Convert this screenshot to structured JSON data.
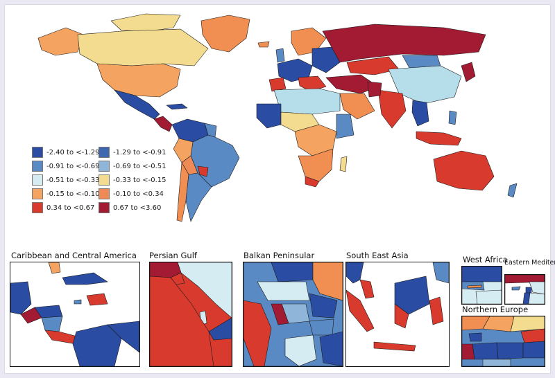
{
  "colors": {
    "c1": "#2a4da3",
    "c2": "#5a8ac4",
    "c3": "#b6ddea",
    "c4": "#f3dc8f",
    "c5": "#f08f51",
    "c6": "#d93a2e",
    "c7": "#a21b33",
    "c0": "#8fb6d8",
    "c8": "#e9f3f7"
  },
  "legend": [
    {
      "label": "-2.40 to <-1.29",
      "color": "#2a4da3"
    },
    {
      "label": "-1.29 to <-0.91",
      "color": "#3e67b0"
    },
    {
      "label": "-0.91 to <-0.69",
      "color": "#5a8ac4"
    },
    {
      "label": "-0.69 to <-0.51",
      "color": "#8fb6d8"
    },
    {
      "label": "-0.51 to <-0.33",
      "color": "#d6ecf3"
    },
    {
      "label": "-0.33 to <-0.15",
      "color": "#f3dc8f"
    },
    {
      "label": "-0.15 to <-0.10",
      "color": "#f4a361"
    },
    {
      "label": "-0.10 to <0.34",
      "color": "#ee8a55"
    },
    {
      "label": "0.34 to <0.67",
      "color": "#d93a2e"
    },
    {
      "label": "0.67 to <3.60",
      "color": "#a21b33"
    }
  ],
  "insets": {
    "caribbean": "Caribbean and Central America",
    "persian_gulf": "Persian Gulf",
    "balkan": "Balkan Peninsular",
    "south_east_asia": "South East Asia",
    "west_africa": "West Africa",
    "eastern_med": "Eastern Mediterranean",
    "northern_europe": "Northern Europe"
  }
}
